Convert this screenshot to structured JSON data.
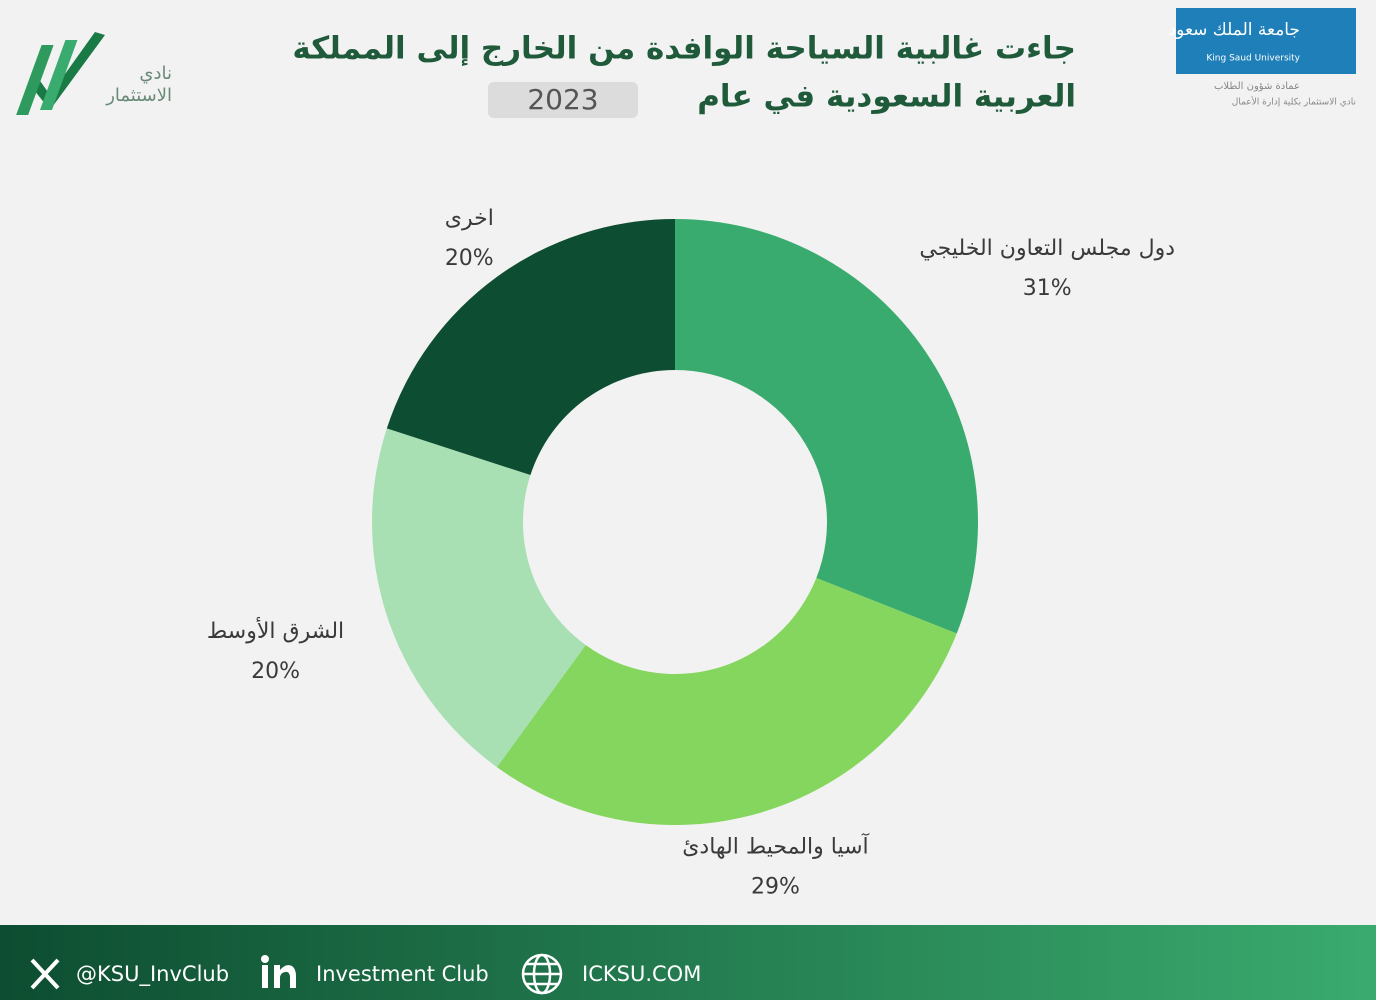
{
  "header": {
    "title_line1": "جاءت غالبية السياحة الوافدة من الخارج إلى المملكة",
    "title_line2": "العربية السعودية في عام",
    "year": "2023",
    "club_logo_line1": "نادي",
    "club_logo_line2": "الاستثمار",
    "university_ar": "جامعة الملك سعود",
    "university_en": "King Saud University",
    "deanship": "عمادة شؤون الطلاب",
    "club_note": "نادي الاستثمار بكلية إدارة الأعمال"
  },
  "chart_data": {
    "type": "donut",
    "categories": [
      "دول مجلس التعاون الخليجي",
      "آسيا والمحيط الهادئ",
      "الشرق الأوسط",
      "اخرى"
    ],
    "values": [
      31,
      29,
      20,
      20
    ],
    "value_labels": [
      "31%",
      "29%",
      "20%",
      "20%"
    ],
    "colors": [
      "#3aab6e",
      "#85d65e",
      "#a8e0b4",
      "#0d4d31"
    ]
  },
  "footer": {
    "twitter": "@KSU_InvClub",
    "linkedin": "Investment Club",
    "website": "ICKSU.COM"
  }
}
